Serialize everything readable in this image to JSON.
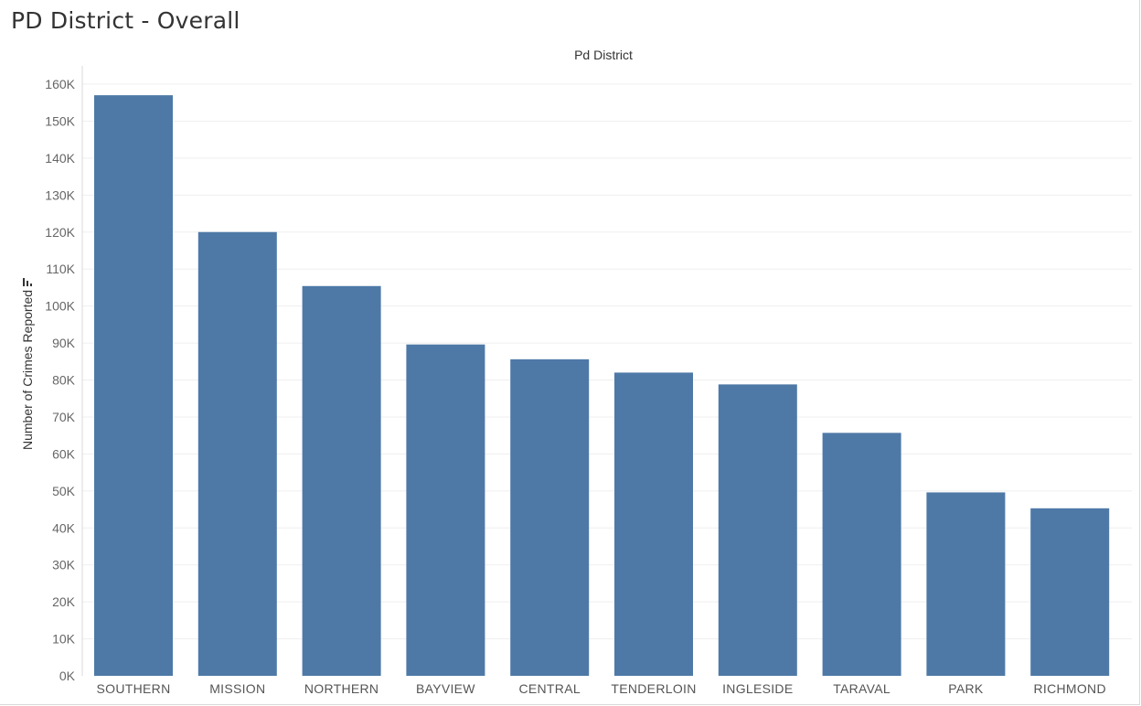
{
  "sheet": {
    "title": "PD District - Overall"
  },
  "colors": {
    "bar": "#4e79a7",
    "gridline": "#efefef",
    "axis_line": "#d9d9d9"
  },
  "icons": {
    "sort": "sort-descending-icon"
  },
  "chart_data": {
    "type": "bar",
    "title": "",
    "header": "Pd District",
    "xlabel": "",
    "ylabel": "Number of Crimes Reported",
    "categories": [
      "SOUTHERN",
      "MISSION",
      "NORTHERN",
      "BAYVIEW",
      "CENTRAL",
      "TENDERLOIN",
      "INGLESIDE",
      "TARAVAL",
      "PARK",
      "RICHMOND"
    ],
    "values": [
      157000,
      120000,
      105400,
      89600,
      85600,
      82000,
      78800,
      65700,
      49600,
      45300
    ],
    "ylim": [
      0,
      160000
    ],
    "yticks": [
      0,
      10000,
      20000,
      30000,
      40000,
      50000,
      60000,
      70000,
      80000,
      90000,
      100000,
      110000,
      120000,
      130000,
      140000,
      150000,
      160000
    ],
    "ytick_labels": [
      "0K",
      "10K",
      "20K",
      "30K",
      "40K",
      "50K",
      "60K",
      "70K",
      "80K",
      "90K",
      "100K",
      "110K",
      "120K",
      "130K",
      "140K",
      "150K",
      "160K"
    ],
    "grid": true,
    "legend": "none"
  }
}
